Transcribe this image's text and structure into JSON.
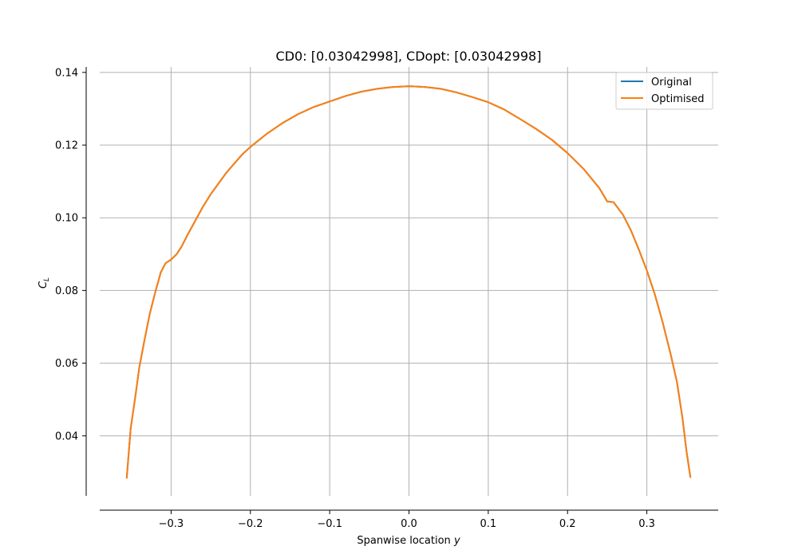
{
  "chart_data": {
    "type": "line",
    "title": "CD0: [0.03042998], CDopt: [0.03042998]",
    "xlabel": "Spanwise location",
    "xlabel_var": "y",
    "ylabel": "C",
    "ylabel_sub": "L",
    "xlim": [
      -0.39,
      0.39
    ],
    "ylim": [
      0.0235,
      0.1415
    ],
    "grid": true,
    "legend_position": "top-right",
    "xticks": [
      -0.3,
      -0.2,
      -0.1,
      0.0,
      0.1,
      0.2,
      0.3
    ],
    "xtick_labels": [
      "−0.3",
      "−0.2",
      "−0.1",
      "0.0",
      "0.1",
      "0.2",
      "0.3"
    ],
    "yticks": [
      0.04,
      0.06,
      0.08,
      0.1,
      0.12,
      0.14
    ],
    "ytick_labels": [
      "0.04",
      "0.06",
      "0.08",
      "0.10",
      "0.12",
      "0.14"
    ],
    "series": [
      {
        "name": "Original",
        "color": "#1f77b4",
        "x": [
          -0.356,
          -0.351,
          -0.345,
          -0.34,
          -0.333,
          -0.327,
          -0.32,
          -0.313,
          -0.307,
          -0.3,
          -0.293,
          -0.287,
          -0.28,
          -0.27,
          -0.26,
          -0.25,
          -0.24,
          -0.23,
          -0.22,
          -0.21,
          -0.2,
          -0.18,
          -0.16,
          -0.14,
          -0.12,
          -0.1,
          -0.08,
          -0.06,
          -0.04,
          -0.02,
          0.0,
          0.02,
          0.04,
          0.06,
          0.08,
          0.1,
          0.12,
          0.14,
          0.16,
          0.18,
          0.2,
          0.22,
          0.24,
          0.25,
          0.258,
          0.27,
          0.28,
          0.29,
          0.3,
          0.31,
          0.32,
          0.33,
          0.338,
          0.345,
          0.35,
          0.355
        ],
        "y": [
          0.0283,
          0.042,
          0.051,
          0.059,
          0.067,
          0.0735,
          0.0795,
          0.085,
          0.0875,
          0.0885,
          0.09,
          0.092,
          0.095,
          0.099,
          0.103,
          0.1065,
          0.1095,
          0.1125,
          0.115,
          0.1175,
          0.1195,
          0.123,
          0.126,
          0.1285,
          0.1305,
          0.132,
          0.1335,
          0.1347,
          0.1355,
          0.136,
          0.1362,
          0.136,
          0.1355,
          0.1345,
          0.1332,
          0.1318,
          0.1298,
          0.1272,
          0.1245,
          0.1215,
          0.1178,
          0.1135,
          0.1082,
          0.1045,
          0.1043,
          0.1008,
          0.0965,
          0.0912,
          0.0855,
          0.079,
          0.0712,
          0.0625,
          0.0548,
          0.0448,
          0.0358,
          0.0285
        ]
      },
      {
        "name": "Optimised",
        "color": "#ff7f0e",
        "x": [
          -0.356,
          -0.351,
          -0.345,
          -0.34,
          -0.333,
          -0.327,
          -0.32,
          -0.313,
          -0.307,
          -0.3,
          -0.293,
          -0.287,
          -0.28,
          -0.27,
          -0.26,
          -0.25,
          -0.24,
          -0.23,
          -0.22,
          -0.21,
          -0.2,
          -0.18,
          -0.16,
          -0.14,
          -0.12,
          -0.1,
          -0.08,
          -0.06,
          -0.04,
          -0.02,
          0.0,
          0.02,
          0.04,
          0.06,
          0.08,
          0.1,
          0.12,
          0.14,
          0.16,
          0.18,
          0.2,
          0.22,
          0.24,
          0.25,
          0.258,
          0.27,
          0.28,
          0.29,
          0.3,
          0.31,
          0.32,
          0.33,
          0.338,
          0.345,
          0.35,
          0.355
        ],
        "y": [
          0.0283,
          0.042,
          0.051,
          0.059,
          0.067,
          0.0735,
          0.0795,
          0.085,
          0.0875,
          0.0885,
          0.09,
          0.092,
          0.095,
          0.099,
          0.103,
          0.1065,
          0.1095,
          0.1125,
          0.115,
          0.1175,
          0.1195,
          0.123,
          0.126,
          0.1285,
          0.1305,
          0.132,
          0.1335,
          0.1347,
          0.1355,
          0.136,
          0.1362,
          0.136,
          0.1355,
          0.1345,
          0.1332,
          0.1318,
          0.1298,
          0.1272,
          0.1245,
          0.1215,
          0.1178,
          0.1135,
          0.1082,
          0.1045,
          0.1043,
          0.1008,
          0.0965,
          0.0912,
          0.0855,
          0.079,
          0.0712,
          0.0625,
          0.0548,
          0.0448,
          0.0358,
          0.0285
        ]
      }
    ]
  }
}
